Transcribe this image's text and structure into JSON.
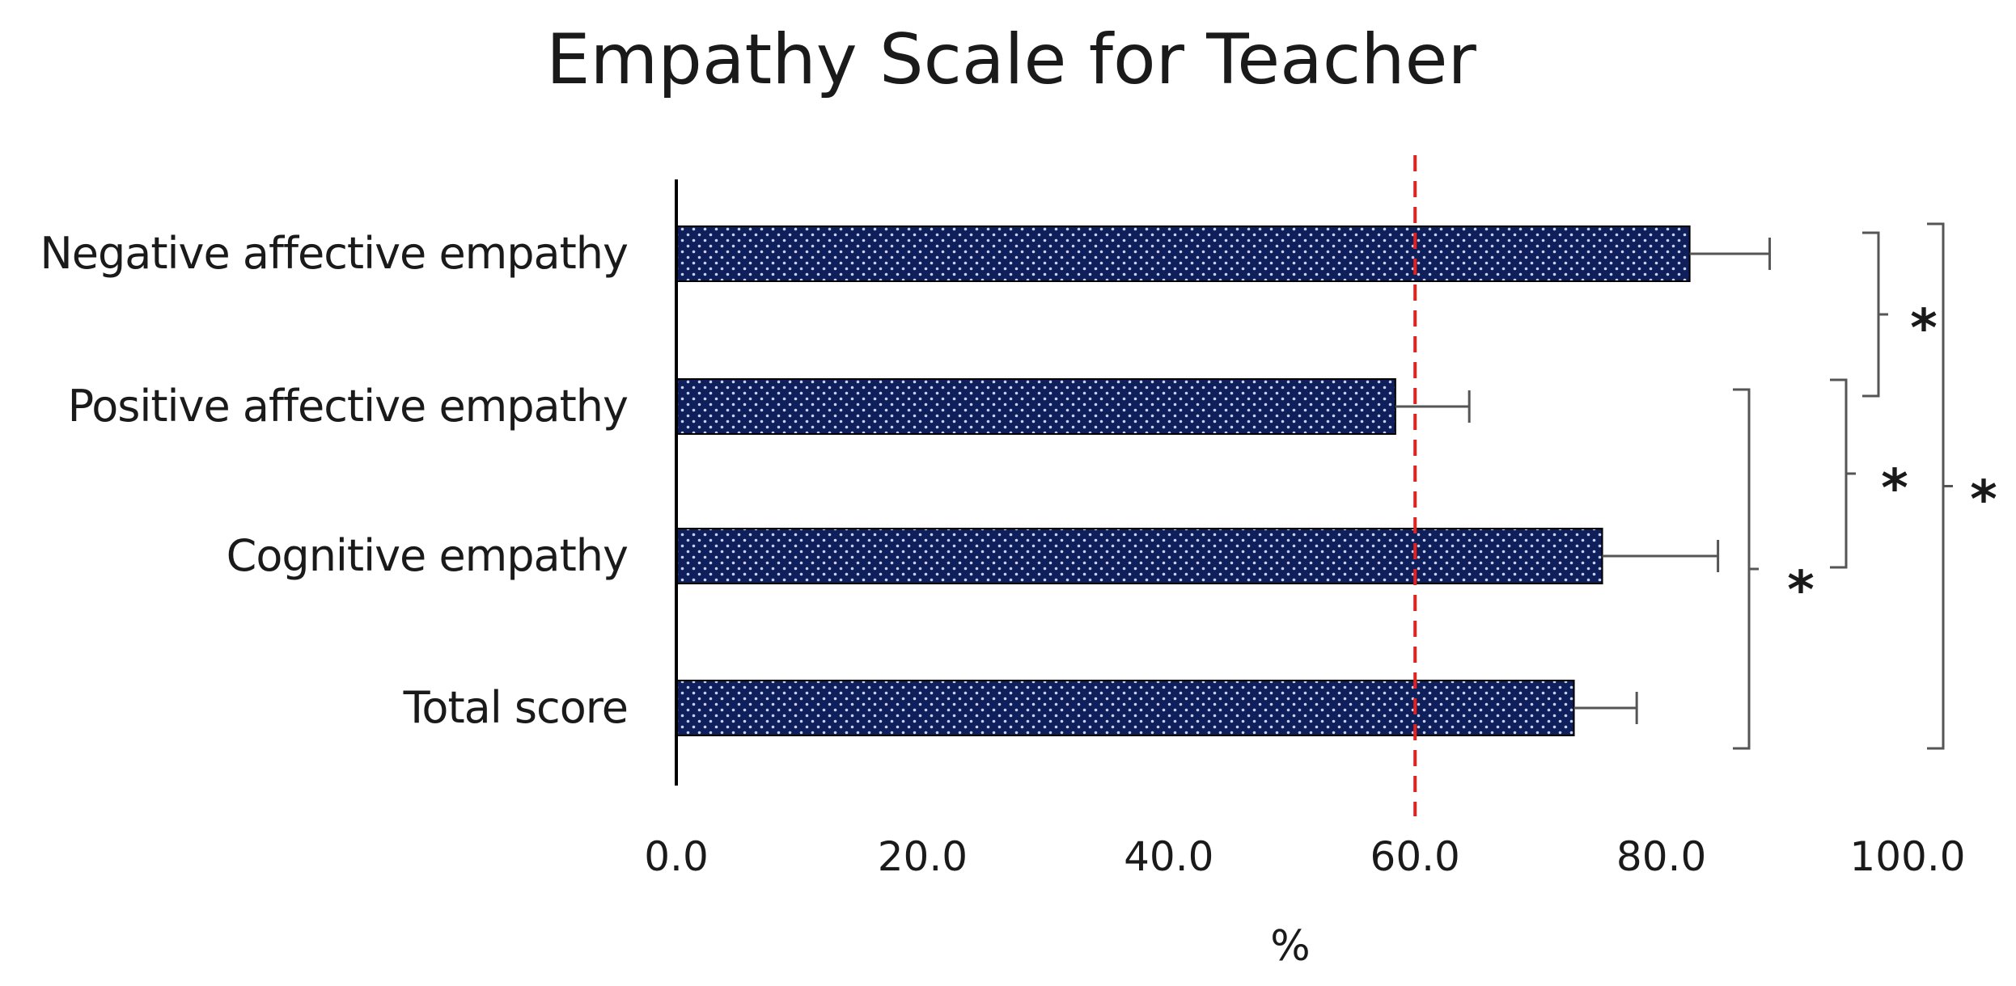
{
  "chart_data": {
    "type": "bar",
    "orientation": "horizontal",
    "title": "Empathy Scale for Teacher",
    "xlabel": "%",
    "ylabel": "",
    "xlim": [
      0,
      100
    ],
    "xticks": [
      0,
      20,
      40,
      60,
      80,
      100
    ],
    "xtick_labels": [
      "0.0",
      "20.0",
      "40.0",
      "60.0",
      "80.0",
      "100.0"
    ],
    "categories": [
      "Negative affective empathy",
      "Positive affective empathy",
      "Cognitive empathy",
      "Total score"
    ],
    "values": [
      82.3,
      58.4,
      75.2,
      72.9
    ],
    "error": [
      6.5,
      6.0,
      9.4,
      5.1
    ],
    "reference_line": {
      "value": 60,
      "color": "#e8201c",
      "style": "dashed"
    },
    "bar_color": "#0f1f5c",
    "bar_pattern": "dotted",
    "grid": false,
    "significance": [
      {
        "from": "Negative affective empathy",
        "to": "Positive affective empathy",
        "label": "*"
      },
      {
        "from": "Positive affective empathy",
        "to": "Total score",
        "label": "*"
      },
      {
        "from": "Positive affective empathy",
        "to": "Cognitive empathy",
        "label": "*"
      },
      {
        "from": "Negative affective empathy",
        "to": "Total score",
        "label": "*"
      }
    ]
  }
}
